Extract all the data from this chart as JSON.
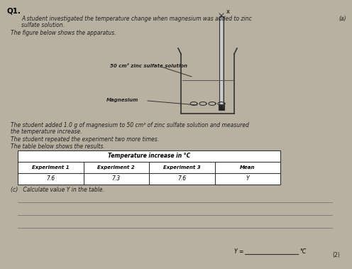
{
  "background_color": "#b8b0a0",
  "page_color": "#d8d0c0",
  "q_number": "Q1.",
  "intro_line1": "A student investigated the temperature change when magnesium was added to zinc",
  "intro_line2": "sulfate solution.",
  "figure_caption": "The figure below shows the apparatus.",
  "label_solution": "50 cm³ zinc sulfate solution",
  "label_magnesium": "Magnesium",
  "label_x": "x",
  "body_text1": "The student added 1.0 g of magnesium to 50 cm³ of zinc sulfate solution and measured",
  "body_text2": "the temperature increase.",
  "body_text3": "The student repeated the experiment two more times.",
  "body_text4": "The table below shows the results.",
  "table_header_main": "Temperature increase in °C",
  "table_col1": "Experiment 1",
  "table_col2": "Experiment 2",
  "table_col3": "Experiment 3",
  "table_col4": "Mean",
  "table_val1": "7.6",
  "table_val2": "7.3",
  "table_val3": "7.6",
  "table_val4": "Y",
  "question_c": "(c)   Calculate value Y in the table.",
  "footer_text": "Y =",
  "footer_unit": "°C",
  "page_marker": "(2)"
}
